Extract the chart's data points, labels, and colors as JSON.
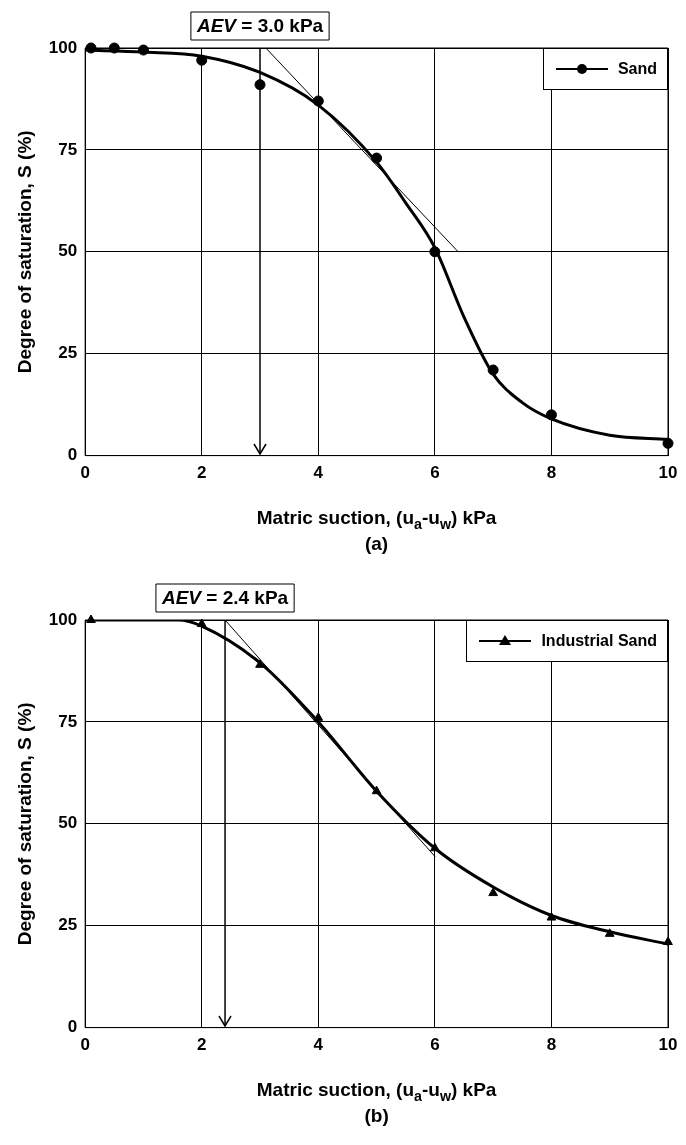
{
  "chart_data": [
    {
      "type": "line",
      "title": "(a)",
      "xlabel": "Matric suction, (u$_{a}$-u$_{w}$) kPa",
      "ylabel": "Degree of saturation, S (%)",
      "xlim": [
        0,
        10
      ],
      "xticks": [
        0,
        2,
        4,
        6,
        8,
        10
      ],
      "ylim": [
        0,
        100
      ],
      "yticks": [
        0,
        25,
        50,
        75,
        100
      ],
      "grid": true,
      "legend": "top right",
      "line_style": "solid",
      "series": [
        {
          "type": "line",
          "color": "#000000",
          "marker": "none",
          "x": [
            0,
            1,
            2,
            3,
            4,
            5,
            5.5,
            6,
            6.5,
            7,
            7.5,
            8,
            9,
            10
          ],
          "values": [
            99.5,
            99,
            98,
            94,
            86,
            72,
            62,
            51,
            34,
            20,
            13,
            9,
            5,
            4
          ]
        },
        {
          "type": "line",
          "color": "#000000",
          "marker": "none",
          "x": [
            3.1,
            6.4
          ],
          "values": [
            100,
            50
          ]
        },
        {
          "type": "scatter",
          "name": "Sand",
          "color": "#000000",
          "marker": "circle",
          "x": [
            0.1,
            0.5,
            1,
            2,
            3,
            4,
            5,
            6,
            7,
            8,
            10
          ],
          "values": [
            100,
            100,
            99.5,
            97,
            91,
            87,
            73,
            50,
            21,
            10,
            3
          ]
        }
      ],
      "ref_lines": [
        {
          "axis": "x",
          "value": 3.0,
          "label": "AEV = 3.0 kPa"
        }
      ]
    },
    {
      "type": "line",
      "title": "(b)",
      "xlabel": "Matric suction, (u$_{a}$-u$_{w}$) kPa",
      "ylabel": "Degree of saturation, S (%)",
      "xlim": [
        0,
        10
      ],
      "xticks": [
        0,
        2,
        4,
        6,
        8,
        10
      ],
      "ylim": [
        0,
        100
      ],
      "yticks": [
        0,
        25,
        50,
        75,
        100
      ],
      "grid": true,
      "legend": "top right",
      "line_style": "solid",
      "series": [
        {
          "type": "line",
          "color": "#000000",
          "marker": "none",
          "x": [
            0,
            1.6,
            2,
            3,
            4,
            5,
            6,
            7,
            8,
            9,
            10
          ],
          "values": [
            100,
            100,
            98.5,
            89.5,
            75,
            58,
            44,
            34.5,
            27.5,
            23.5,
            20.5
          ]
        },
        {
          "type": "line",
          "color": "#000000",
          "marker": "none",
          "x": [
            2.4,
            6
          ],
          "values": [
            100,
            42
          ]
        },
        {
          "type": "scatter",
          "name": "Industrial Sand",
          "color": "#000000",
          "marker": "triangle",
          "x": [
            0.1,
            2,
            3,
            4,
            5,
            6,
            7,
            8,
            9,
            10
          ],
          "values": [
            100,
            99,
            89,
            76,
            58,
            44,
            33,
            27,
            23,
            21
          ]
        }
      ],
      "ref_lines": [
        {
          "axis": "x",
          "value": 2.4,
          "label": "AEV = 2.4 kPa"
        }
      ]
    }
  ]
}
